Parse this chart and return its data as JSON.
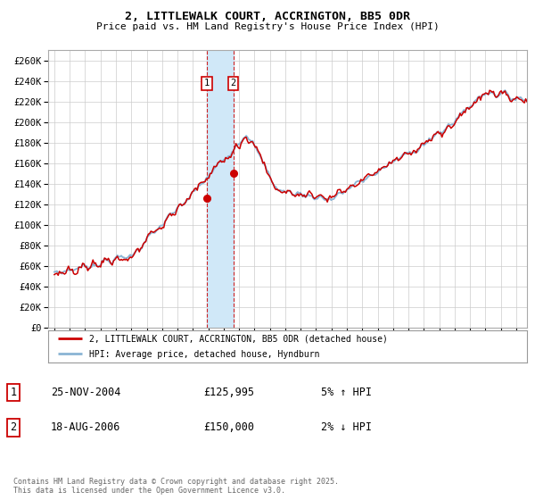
{
  "title": "2, LITTLEWALK COURT, ACCRINGTON, BB5 0DR",
  "subtitle": "Price paid vs. HM Land Registry's House Price Index (HPI)",
  "legend_line1": "2, LITTLEWALK COURT, ACCRINGTON, BB5 0DR (detached house)",
  "legend_line2": "HPI: Average price, detached house, Hyndburn",
  "sale1_label": "1",
  "sale1_date": "25-NOV-2004",
  "sale1_price": "£125,995",
  "sale1_hpi": "5% ↑ HPI",
  "sale2_label": "2",
  "sale2_date": "18-AUG-2006",
  "sale2_price": "£150,000",
  "sale2_hpi": "2% ↓ HPI",
  "footnote": "Contains HM Land Registry data © Crown copyright and database right 2025.\nThis data is licensed under the Open Government Licence v3.0.",
  "hpi_color": "#8ab4d4",
  "price_color": "#cc0000",
  "sale1_x": 2004.9,
  "sale1_y": 125995,
  "sale2_x": 2006.63,
  "sale2_y": 150000,
  "shade_x1": 2004.9,
  "shade_x2": 2006.63,
  "xmin": 1994.6,
  "xmax": 2025.7,
  "ymin": 0,
  "ymax": 270000,
  "yticks": [
    0,
    20000,
    40000,
    60000,
    80000,
    100000,
    120000,
    140000,
    160000,
    180000,
    200000,
    220000,
    240000,
    260000
  ],
  "background_color": "#ffffff",
  "grid_color": "#cccccc"
}
